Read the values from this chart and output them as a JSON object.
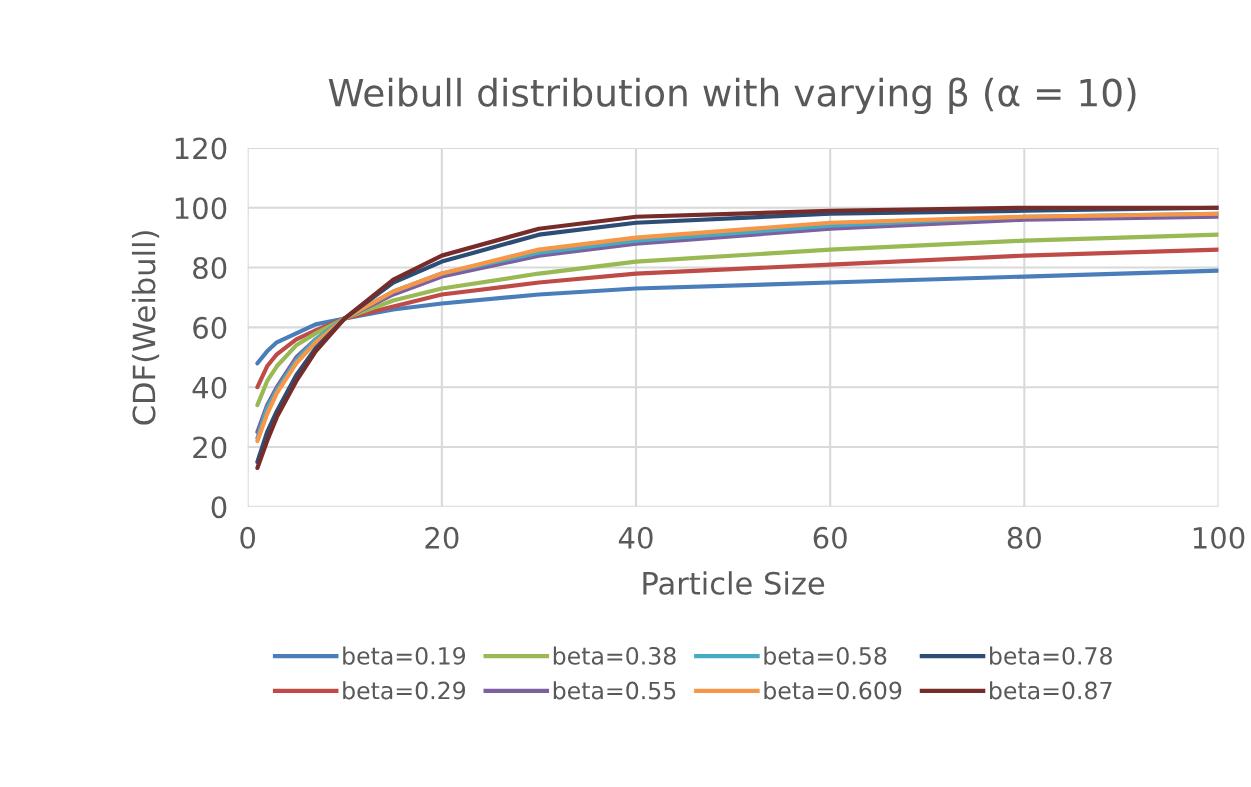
{
  "chart_data": {
    "type": "line",
    "title": "Weibull distribution with varying β (α = 10)",
    "xlabel": "Particle Size",
    "ylabel": "CDF(Weibull)",
    "x": [
      1,
      2,
      3,
      5,
      7,
      10,
      15,
      20,
      30,
      40,
      60,
      80,
      100
    ],
    "xlim": [
      0,
      100
    ],
    "xticks": [
      0,
      20,
      40,
      60,
      80,
      100
    ],
    "ylim": [
      0,
      120
    ],
    "yticks": [
      0,
      20,
      40,
      60,
      80,
      100,
      120
    ],
    "grid": true,
    "legend": "bottom",
    "marker": "none",
    "line_style": "solid",
    "series": [
      {
        "name": "beta=0.19",
        "color": "#4a7ebb",
        "values": [
          48,
          52,
          55,
          58,
          61,
          63,
          66,
          68,
          71,
          73,
          75,
          77,
          79
        ]
      },
      {
        "name": "beta=0.29",
        "color": "#be4b48",
        "values": [
          40,
          47,
          51,
          56,
          59,
          63,
          67,
          71,
          75,
          78,
          81,
          84,
          86
        ]
      },
      {
        "name": "beta=0.38",
        "color": "#98b954",
        "values": [
          34,
          42,
          47,
          54,
          58,
          63,
          69,
          73,
          78,
          82,
          86,
          89,
          91
        ]
      },
      {
        "name": "beta=0.55",
        "color": "#7d60a0",
        "values": [
          25,
          34,
          40,
          50,
          56,
          63,
          71,
          77,
          84,
          88,
          93,
          96,
          97
        ]
      },
      {
        "name": "beta=0.58",
        "color": "#46aac5",
        "values": [
          23,
          33,
          39,
          49,
          56,
          63,
          72,
          78,
          85,
          89,
          94,
          97,
          98
        ]
      },
      {
        "name": "beta=0.609",
        "color": "#f79646",
        "values": [
          22,
          31,
          38,
          48,
          55,
          63,
          72,
          78,
          86,
          90,
          95,
          97,
          98
        ]
      },
      {
        "name": "beta=0.78",
        "color": "#2c4d75",
        "values": [
          15,
          25,
          32,
          44,
          53,
          63,
          75,
          82,
          91,
          95,
          98,
          99,
          100
        ]
      },
      {
        "name": "beta=0.87",
        "color": "#772c2a",
        "values": [
          13,
          22,
          30,
          42,
          52,
          63,
          76,
          84,
          93,
          97,
          99,
          100,
          100
        ]
      }
    ]
  }
}
